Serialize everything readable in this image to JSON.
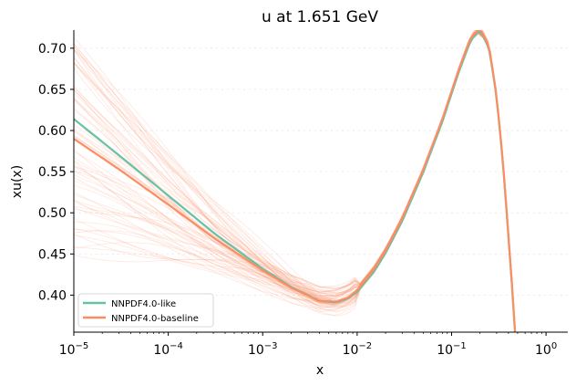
{
  "chart_data": {
    "type": "line",
    "title": "u at 1.651 GeV",
    "xlabel": "x",
    "ylabel": "xu(x)",
    "xscale": "log",
    "xlim": [
      1e-05,
      1.7
    ],
    "ylim": [
      0.355,
      0.722
    ],
    "x_ticks": [
      {
        "value": 1e-05,
        "base": "10",
        "exp": "−5"
      },
      {
        "value": 0.0001,
        "base": "10",
        "exp": "−4"
      },
      {
        "value": 0.001,
        "base": "10",
        "exp": "−3"
      },
      {
        "value": 0.01,
        "base": "10",
        "exp": "−2"
      },
      {
        "value": 0.1,
        "base": "10",
        "exp": "−1"
      },
      {
        "value": 1,
        "base": "10",
        "exp": "0"
      }
    ],
    "y_ticks": [
      {
        "value": 0.4,
        "label": "0.40"
      },
      {
        "value": 0.45,
        "label": "0.45"
      },
      {
        "value": 0.5,
        "label": "0.50"
      },
      {
        "value": 0.55,
        "label": "0.55"
      },
      {
        "value": 0.6,
        "label": "0.60"
      },
      {
        "value": 0.65,
        "label": "0.65"
      },
      {
        "value": 0.7,
        "label": "0.70"
      }
    ],
    "legend_position": "lower-left",
    "colors": {
      "like": "#66c2a5",
      "baseline": "#fc8d62"
    },
    "series": [
      {
        "name": "NNPDF4.0-like",
        "color": "#66c2a5",
        "x": [
          1e-05,
          3e-05,
          0.0001,
          0.0003,
          0.001,
          0.002,
          0.004,
          0.006,
          0.008,
          0.01,
          0.015,
          0.02,
          0.03,
          0.05,
          0.08,
          0.12,
          0.16,
          0.2,
          0.25,
          0.3,
          0.35,
          0.4,
          0.45,
          0.5
        ],
        "y": [
          0.614,
          0.57,
          0.521,
          0.476,
          0.432,
          0.41,
          0.393,
          0.391,
          0.396,
          0.404,
          0.428,
          0.451,
          0.49,
          0.549,
          0.611,
          0.672,
          0.71,
          0.722,
          0.7,
          0.64,
          0.56,
          0.47,
          0.39,
          0.3
        ]
      },
      {
        "name": "NNPDF4.0-baseline",
        "color": "#fc8d62",
        "x": [
          1e-05,
          3e-05,
          0.0001,
          0.0003,
          0.001,
          0.002,
          0.004,
          0.006,
          0.008,
          0.01,
          0.015,
          0.02,
          0.03,
          0.05,
          0.08,
          0.12,
          0.16,
          0.2,
          0.25,
          0.3,
          0.35,
          0.4,
          0.45,
          0.5
        ],
        "y": [
          0.59,
          0.553,
          0.51,
          0.47,
          0.43,
          0.409,
          0.393,
          0.392,
          0.397,
          0.406,
          0.431,
          0.454,
          0.493,
          0.552,
          0.614,
          0.675,
          0.713,
          0.724,
          0.702,
          0.642,
          0.562,
          0.472,
          0.392,
          0.302
        ]
      }
    ]
  }
}
